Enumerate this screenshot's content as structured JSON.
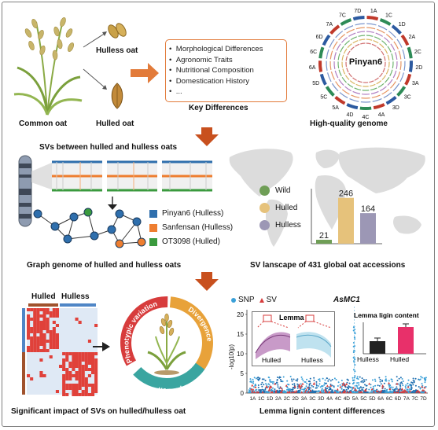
{
  "panel1": {
    "common_oat": "Common oat",
    "hulless_oat": "Hulless oat",
    "hulled_oat": "Hulled oat",
    "differences": [
      "Morphological Differences",
      "Agronomic Traits",
      "Nutritional Composition",
      "Domestication History",
      "..."
    ],
    "key_differences": "Key Differences",
    "genome_center": "Pinyan6",
    "genome_caption": "High-quality genome",
    "chromosomes": [
      "1A",
      "1C",
      "1D",
      "2A",
      "2C",
      "2D",
      "3A",
      "3C",
      "3D",
      "4A",
      "4C",
      "4D",
      "5A",
      "5C",
      "5D",
      "6A",
      "6C",
      "6D",
      "7A",
      "7C",
      "7D"
    ]
  },
  "panel2": {
    "title": "SVs between hulled and hulless oats",
    "legend": [
      {
        "label": "Pinyan6 (Hulless)",
        "color": "#2f6fad"
      },
      {
        "label": "Sanfensan (Hulless)",
        "color": "#ee7e30"
      },
      {
        "label": "OT3098 (Hulled)",
        "color": "#3a9a3e"
      }
    ],
    "caption": "Graph genome of hulled and hulless oats"
  },
  "panel3": {
    "caption": "SV lanscape of 431 global oat accessions",
    "legend": [
      {
        "label": "Wild",
        "color": "#6f9e56"
      },
      {
        "label": "Hulled",
        "color": "#e6c27b"
      },
      {
        "label": "Hulless",
        "color": "#9c97b5"
      }
    ]
  },
  "panel4": {
    "hulled": "Hulled",
    "hulless": "Hulless",
    "arc_labels": [
      "Phenotypic variation",
      "Divergence",
      "Adaptation"
    ],
    "caption": "Significant impact of SVs on hulled/hulless oat"
  },
  "panel5": {
    "snp_label": "SNP",
    "sv_label": "SV",
    "gene": "AsMC1",
    "ylabel": "-log10(p)",
    "yticks": [
      "20",
      "15",
      "10",
      "5",
      "0"
    ],
    "xticks": [
      "1A",
      "1C",
      "1D",
      "2A",
      "2C",
      "2D",
      "3A",
      "3C",
      "3D",
      "4A",
      "4C",
      "4D",
      "5A",
      "5C",
      "5D",
      "6A",
      "6C",
      "6D",
      "7A",
      "7C",
      "7D"
    ],
    "inset_lemma": "Lemma",
    "inset_hulled": "Hulled",
    "inset_hulless": "Hulless",
    "lignin_title": "Lemma ligin content",
    "lignin_hulless": "Hulless",
    "lignin_hulled": "Hulled",
    "caption": "Lemma lignin content differences"
  },
  "chart_data": {
    "type": "bar",
    "categories": [
      "Wild",
      "Hulled",
      "Hulless"
    ],
    "values": [
      21,
      246,
      164
    ],
    "colors": [
      "#6f9e56",
      "#e6c27b",
      "#9c97b5"
    ],
    "ylim": [
      0,
      270
    ]
  }
}
